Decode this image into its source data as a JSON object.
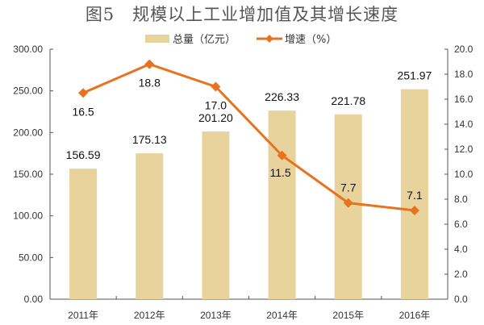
{
  "chart_data": {
    "type": "bar+line",
    "title": "图5　规模以上工业增加值及其增长速度",
    "categories": [
      "2011年",
      "2012年",
      "2013年",
      "2014年",
      "2015年",
      "2016年"
    ],
    "series": [
      {
        "name": "总量（亿元）",
        "type": "bar",
        "axis": "left",
        "values": [
          156.59,
          175.13,
          201.2,
          226.33,
          221.78,
          251.97
        ],
        "labels": [
          "156.59",
          "175.13",
          "201.20",
          "226.33",
          "221.78",
          "251.97"
        ],
        "color": "#e9d39c"
      },
      {
        "name": "增速（%）",
        "type": "line",
        "axis": "right",
        "values": [
          16.5,
          18.8,
          17.0,
          11.5,
          7.7,
          7.1
        ],
        "labels": [
          "16.5",
          "18.8",
          "17.0",
          "11.5",
          "7.7",
          "7.1"
        ],
        "color": "#e8731e"
      }
    ],
    "left_axis": {
      "ylim": [
        0,
        300
      ],
      "ticks": [
        "0.00",
        "50.00",
        "100.00",
        "150.00",
        "200.00",
        "250.00",
        "300.00"
      ]
    },
    "right_axis": {
      "ylim": [
        0,
        20
      ],
      "ticks": [
        "0.0",
        "2.0",
        "4.0",
        "6.0",
        "8.0",
        "10.0",
        "12.0",
        "14.0",
        "16.0",
        "18.0",
        "20.0"
      ]
    },
    "legend": "top-center",
    "grid": false
  }
}
